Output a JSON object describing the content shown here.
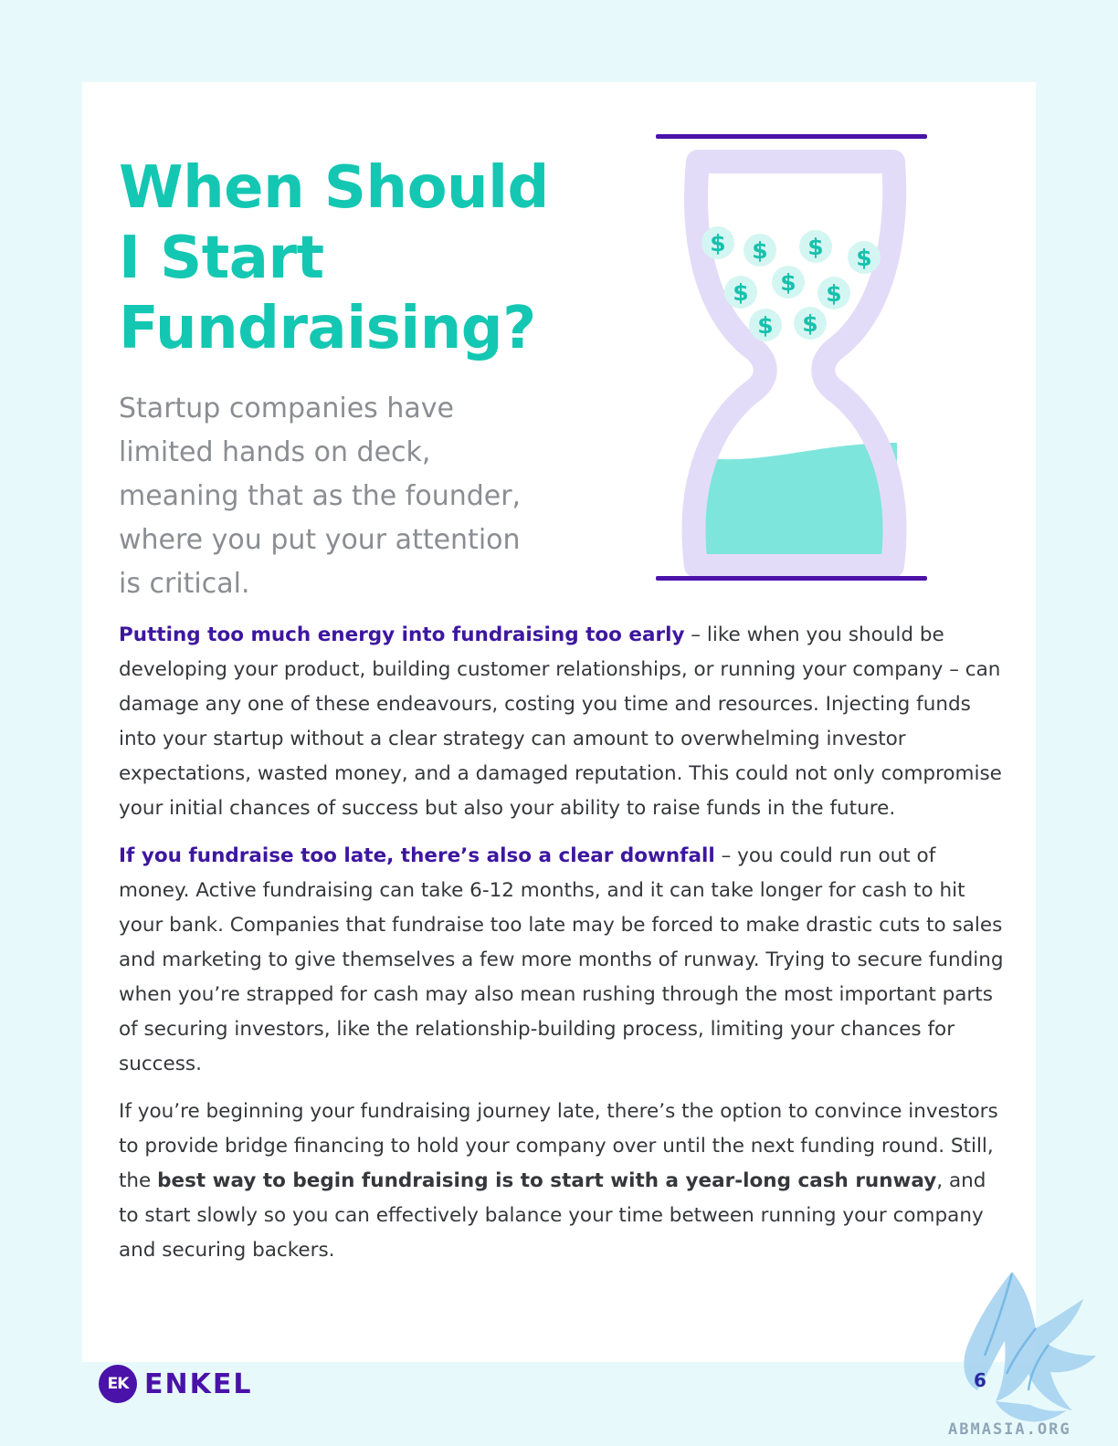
{
  "heading": {
    "line1": "When Should",
    "line2": "I Start",
    "line3": "Fundraising?"
  },
  "intro": "Startup companies have limited hands on deck, meaning that as the founder, where you put your attention is critical.",
  "illustration": {
    "icon": "hourglass-icon",
    "coin_symbol": "$"
  },
  "paragraphs": {
    "p1": {
      "lead": "Putting too much energy into fundraising too early",
      "text": " – like when you should be developing your product, building customer relationships, or running your company – can damage any one of these endeavours, costing you time and resources. Injecting funds into your startup without a clear strategy can amount to overwhelming investor expectations, wasted money, and a damaged reputation. This could not only compromise your initial chances of success but also your ability to raise funds in the future."
    },
    "p2": {
      "lead": "If you fundraise too late, there’s also a clear downfall",
      "text": " – you could run out of money. Active fundraising can take 6-12 months, and it can take longer for cash to hit your bank. Companies that fundraise too late may be forced to make drastic cuts to sales and marketing to give themselves a few more months of runway. Trying to secure funding when you’re strapped for cash may also mean rushing through the most important parts of securing investors, like the relationship-building process, limiting your chances for success."
    },
    "p3": {
      "text_before": "If you’re beginning your fundraising journey late, there’s the option to convince investors to provide bridge financing to hold your company over until the next funding round. Still, the ",
      "strong": "best way to begin fundraising is to start with a year-long cash runway",
      "text_after": ", and to start slowly so you can effectively balance your time between running your company and securing backers."
    }
  },
  "footer": {
    "logo_mark": "EK",
    "logo_text": "ENKEL",
    "page_number": "6",
    "watermark": "ABMASIA.ORG"
  },
  "colors": {
    "heading": "#14c7b2",
    "lead": "#3d16a0",
    "brand": "#4a12a8",
    "hourglass": "#e3dcf8",
    "sand": "#7ee5dc",
    "background": "#e8f9fb"
  }
}
